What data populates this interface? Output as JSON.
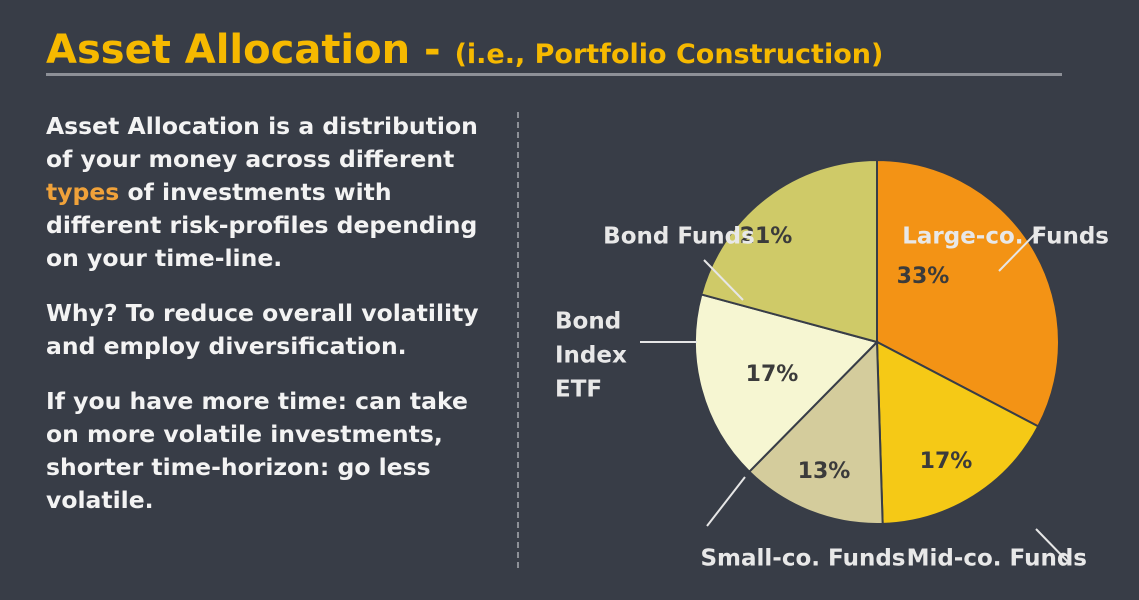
{
  "header": {
    "title_main": "Asset Allocation - ",
    "title_sub": "(i.e., Portfolio Construction)"
  },
  "text": {
    "para1_before": "Asset Allocation is a distribution of your money across different ",
    "para1_highlight": "types",
    "para1_after": " of investments with different risk-profiles depending on your time-line.",
    "para2": "Why? To reduce overall volatility and employ diversification.",
    "para3": "If you have more time: can take on more volatile investments, shorter time-horizon: go less volatile."
  },
  "colors": {
    "background": "#383d47",
    "title": "#f6b900",
    "highlight": "#f0a23a"
  },
  "chart_data": {
    "type": "pie",
    "start_angle_deg": 0,
    "direction": "clockwise",
    "slices": [
      {
        "name": "Large-co. Funds",
        "label_lines": [
          "Large-co. Funds"
        ],
        "value": 33,
        "label": "33%",
        "color": "#f39315"
      },
      {
        "name": "Mid-co. Funds",
        "label_lines": [
          "Mid-co. Funds"
        ],
        "value": 17,
        "label": "17%",
        "color": "#f5c916"
      },
      {
        "name": "Small-co. Funds",
        "label_lines": [
          "Small-co. Funds"
        ],
        "value": 13,
        "label": "13%",
        "color": "#d4cc9c"
      },
      {
        "name": "Bond Index ETF",
        "label_lines": [
          "Bond",
          "Index",
          "ETF"
        ],
        "value": 17,
        "label": "17%",
        "color": "#f6f6d2"
      },
      {
        "name": "Bond Funds",
        "label_lines": [
          "Bond Funds"
        ],
        "value": 21,
        "label": "21%",
        "color": "#cfca68"
      }
    ]
  }
}
